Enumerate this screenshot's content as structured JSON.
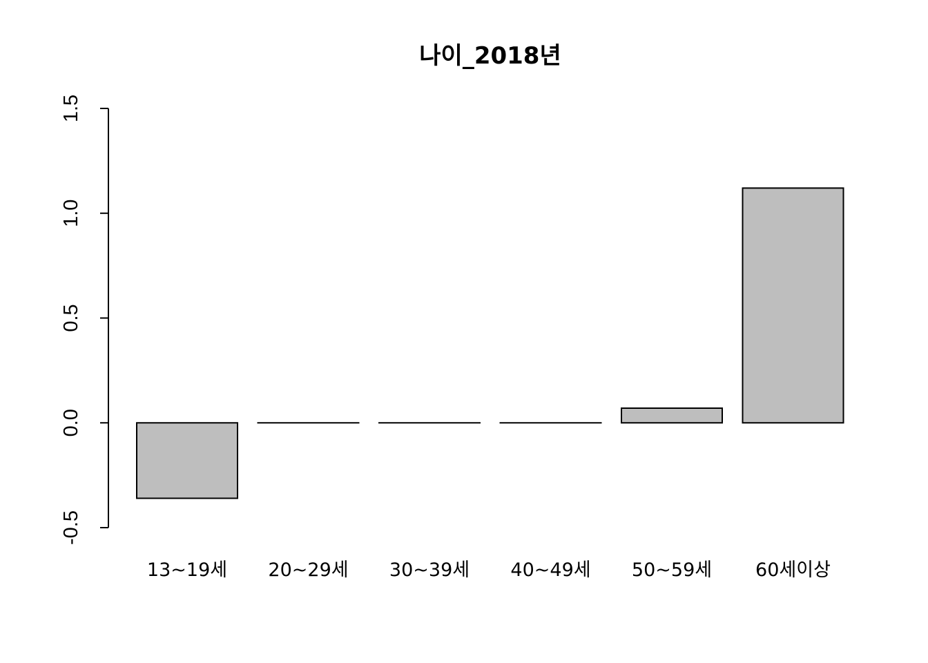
{
  "chart_data": {
    "type": "bar",
    "title": "나이_2018년",
    "xlabel": "",
    "ylabel": "",
    "categories": [
      "13~19세",
      "20~29세",
      "30~39세",
      "40~49세",
      "50~59세",
      "60세이상"
    ],
    "values": [
      -0.36,
      0.0,
      0.0,
      0.0,
      0.07,
      1.12
    ],
    "ylim": [
      -0.5,
      1.5
    ],
    "yticks": [
      -0.5,
      0.0,
      0.5,
      1.0,
      1.5
    ],
    "ytick_labels": [
      "-0.5",
      "0.0",
      "0.5",
      "1.0",
      "1.5"
    ],
    "grid": false,
    "bar_color": "#bebebe"
  }
}
